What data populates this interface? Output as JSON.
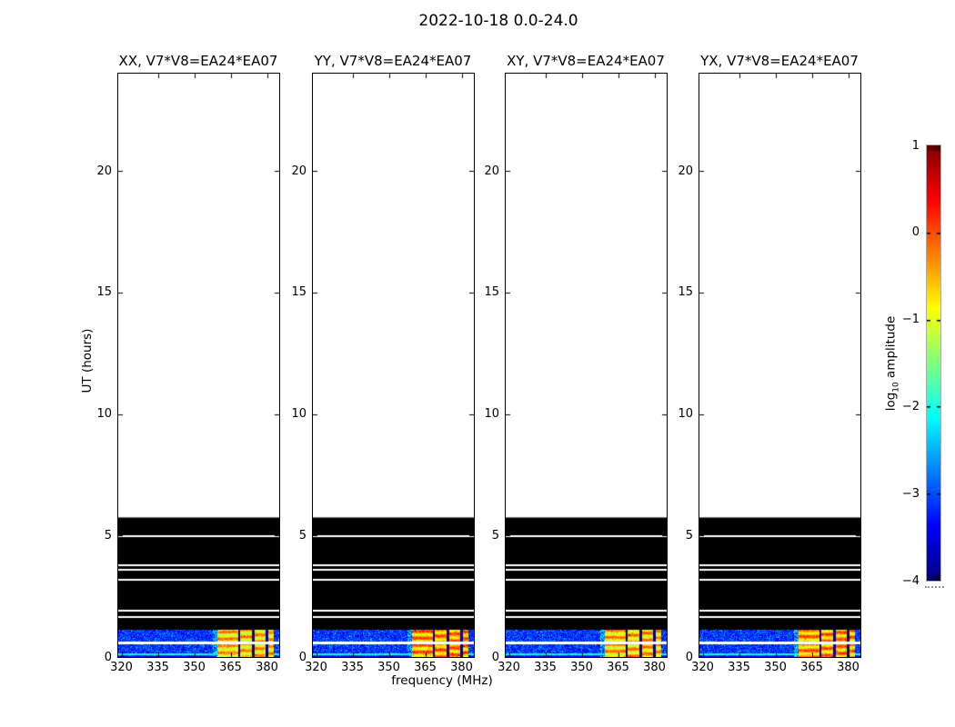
{
  "figure": {
    "title": "2022-10-18 0.0-24.0",
    "xlabel": "frequency (MHz)",
    "ylabel": "UT (hours)",
    "background_color": "#ffffff"
  },
  "colorbar": {
    "label_prefix": "log",
    "label_subscript": "10",
    "label_suffix": " amplitude",
    "tick_values": [
      1,
      0,
      -1,
      -2,
      -3,
      -4
    ],
    "tick_labels": [
      "1",
      "0",
      "−1",
      "−2",
      "−3",
      "−4"
    ],
    "vmin": -4,
    "vmax": 1,
    "colormap": "jet"
  },
  "chart_data": {
    "type": "heatmap",
    "title": "2022-10-18 0.0-24.0",
    "xlabel": "frequency (MHz)",
    "ylabel": "UT (hours)",
    "x_ticks_mhz": [
      320,
      335,
      350,
      365,
      380
    ],
    "y_ticks_hours": [
      0,
      5,
      10,
      15,
      20
    ],
    "x_range_mhz": [
      318.7,
      385.1
    ],
    "y_range_hours": [
      0,
      24
    ],
    "colorbar_label": "log10 amplitude",
    "color_scale_range_log10": [
      -4,
      1
    ],
    "panels": [
      {
        "title": "XX, V7*V8=EA24*EA07",
        "polarization": "XX",
        "baseline": "V7*V8=EA24*EA07",
        "rfi_patch_extra_intensity": 0.0
      },
      {
        "title": "YY, V7*V8=EA24*EA07",
        "polarization": "YY",
        "baseline": "V7*V8=EA24*EA07",
        "rfi_patch_extra_intensity": 0.28
      },
      {
        "title": "XY, V7*V8=EA24*EA07",
        "polarization": "XY",
        "baseline": "V7*V8=EA24*EA07",
        "rfi_patch_extra_intensity": 0.06
      },
      {
        "title": "YX, V7*V8=EA24*EA07",
        "polarization": "YX",
        "baseline": "V7*V8=EA24*EA07",
        "rfi_patch_extra_intensity": 0.24
      }
    ],
    "features": {
      "data_present_hours": [
        0,
        5.74
      ],
      "flagged_black_band_hours": [
        1.12,
        5.74
      ],
      "white_horizontal_lines_hours": [
        4.97,
        3.79,
        3.6,
        3.16,
        1.91,
        1.66
      ],
      "noise_band_hours": [
        0,
        1.12
      ],
      "noise_mean_log10_amplitude": -3.1,
      "bright_cyan_line_hour": 0.13,
      "bright_cyan_log10_amplitude": -2.1,
      "white_line_in_noise_hour": 0.6,
      "rfi_patch_blocks_mhz": [
        [
          359.3,
          367.9
        ],
        [
          368.9,
          373.7
        ],
        [
          374.6,
          379.4
        ],
        [
          380.2,
          382.8
        ]
      ],
      "rfi_patch_mean_log10_amplitude": -0.7
    }
  }
}
